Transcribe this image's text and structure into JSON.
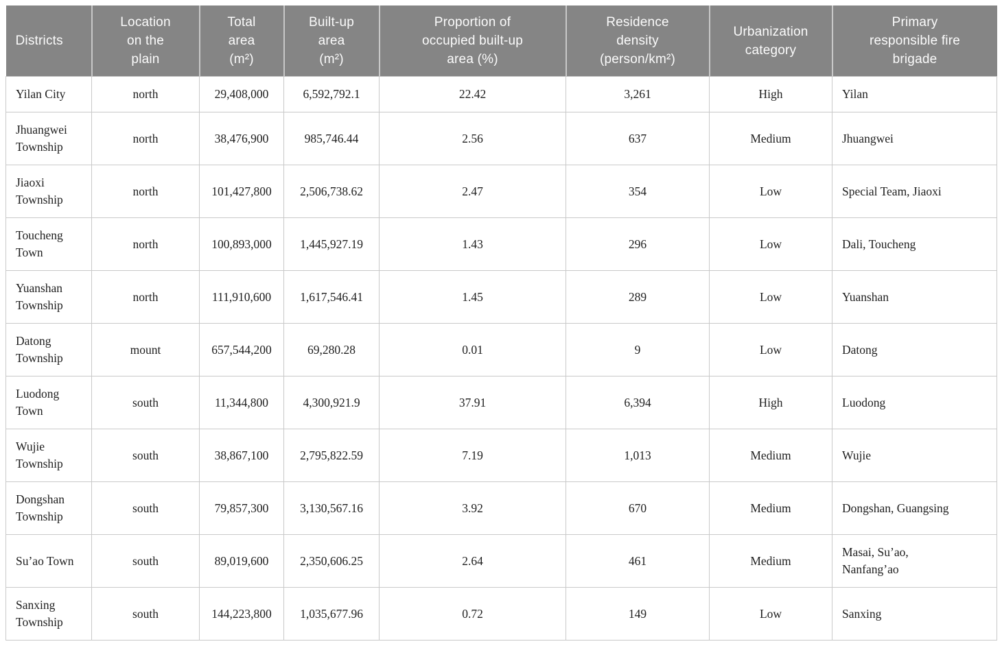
{
  "colors": {
    "header_bg": "#858585",
    "header_text": "#fbfbfb",
    "grid_line": "#c9c9c9",
    "body_text": "#1e1e1e"
  },
  "table": {
    "columns": [
      {
        "id": "district",
        "label": "Districts"
      },
      {
        "id": "location",
        "label": "Location\non the\nplain"
      },
      {
        "id": "total_area",
        "label": "Total\narea\n(m²)"
      },
      {
        "id": "built_up_area",
        "label": "Built-up\narea\n(m²)"
      },
      {
        "id": "proportion",
        "label": "Proportion of\noccupied built-up\narea (%)"
      },
      {
        "id": "density",
        "label": "Residence\ndensity\n(person/km²)"
      },
      {
        "id": "urbanization",
        "label": "Urbanization\ncategory"
      },
      {
        "id": "fire_brigade",
        "label": "Primary\nresponsible fire\nbrigade"
      }
    ],
    "rows": [
      {
        "district": "Yilan City",
        "location": "north",
        "total_area": "29,408,000",
        "built_up_area": "6,592,792.1",
        "proportion": "22.42",
        "density": "3,261",
        "urbanization": "High",
        "fire_brigade": "Yilan"
      },
      {
        "district": "Jhuangwei\nTownship",
        "location": "north",
        "total_area": "38,476,900",
        "built_up_area": "985,746.44",
        "proportion": "2.56",
        "density": "637",
        "urbanization": "Medium",
        "fire_brigade": "Jhuangwei"
      },
      {
        "district": "Jiaoxi\nTownship",
        "location": "north",
        "total_area": "101,427,800",
        "built_up_area": "2,506,738.62",
        "proportion": "2.47",
        "density": "354",
        "urbanization": "Low",
        "fire_brigade": "Special Team, Jiaoxi"
      },
      {
        "district": "Toucheng\nTown",
        "location": "north",
        "total_area": "100,893,000",
        "built_up_area": "1,445,927.19",
        "proportion": "1.43",
        "density": "296",
        "urbanization": "Low",
        "fire_brigade": "Dali, Toucheng"
      },
      {
        "district": "Yuanshan\nTownship",
        "location": "north",
        "total_area": "111,910,600",
        "built_up_area": "1,617,546.41",
        "proportion": "1.45",
        "density": "289",
        "urbanization": "Low",
        "fire_brigade": "Yuanshan"
      },
      {
        "district": "Datong\nTownship",
        "location": "mount",
        "total_area": "657,544,200",
        "built_up_area": "69,280.28",
        "proportion": "0.01",
        "density": "9",
        "urbanization": "Low",
        "fire_brigade": "Datong"
      },
      {
        "district": "Luodong\nTown",
        "location": "south",
        "total_area": "11,344,800",
        "built_up_area": "4,300,921.9",
        "proportion": "37.91",
        "density": "6,394",
        "urbanization": "High",
        "fire_brigade": "Luodong"
      },
      {
        "district": "Wujie\nTownship",
        "location": "south",
        "total_area": "38,867,100",
        "built_up_area": "2,795,822.59",
        "proportion": "7.19",
        "density": "1,013",
        "urbanization": "Medium",
        "fire_brigade": "Wujie"
      },
      {
        "district": "Dongshan\nTownship",
        "location": "south",
        "total_area": "79,857,300",
        "built_up_area": "3,130,567.16",
        "proportion": "3.92",
        "density": "670",
        "urbanization": "Medium",
        "fire_brigade": "Dongshan, Guangsing"
      },
      {
        "district": "Su’ao Town",
        "location": "south",
        "total_area": "89,019,600",
        "built_up_area": "2,350,606.25",
        "proportion": "2.64",
        "density": "461",
        "urbanization": "Medium",
        "fire_brigade": "Masai, Su’ao,\nNanfang’ao"
      },
      {
        "district": "Sanxing\nTownship",
        "location": "south",
        "total_area": "144,223,800",
        "built_up_area": "1,035,677.96",
        "proportion": "0.72",
        "density": "149",
        "urbanization": "Low",
        "fire_brigade": "Sanxing"
      }
    ]
  }
}
